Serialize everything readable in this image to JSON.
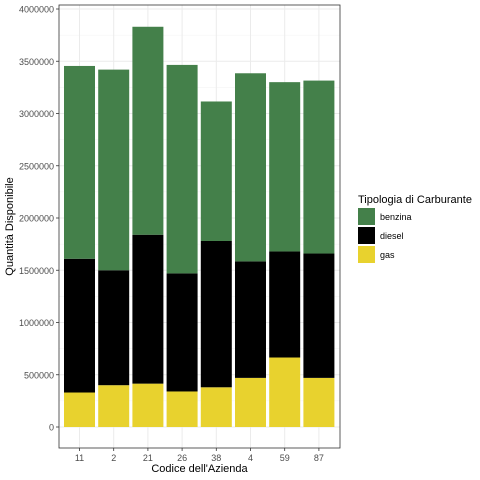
{
  "chart_data": {
    "type": "bar",
    "stacked": true,
    "xlabel": "Codice dell'Azienda",
    "ylabel": "Quantità Disponibile",
    "categories": [
      "11",
      "2",
      "21",
      "26",
      "38",
      "4",
      "59",
      "87"
    ],
    "series": [
      {
        "name": "gas",
        "color": "#E8D22E",
        "values": [
          330000,
          400000,
          415000,
          340000,
          380000,
          470000,
          665000,
          470000
        ]
      },
      {
        "name": "diesel",
        "color": "#000000",
        "values": [
          1280000,
          1100000,
          1425000,
          1130000,
          1400000,
          1115000,
          1015000,
          1190000
        ]
      },
      {
        "name": "benzina",
        "color": "#44804A",
        "values": [
          1845000,
          1920000,
          1990000,
          1995000,
          1335000,
          1800000,
          1620000,
          1655000
        ]
      }
    ],
    "ylim": [
      0,
      4000000
    ],
    "yticks": [
      "0",
      "500000",
      "1000000",
      "1500000",
      "2000000",
      "2500000",
      "3000000",
      "3500000",
      "4000000"
    ],
    "grid": true,
    "legend": {
      "title": "Tipologia di Carburante",
      "position": "right",
      "items": [
        "benzina",
        "diesel",
        "gas"
      ]
    }
  }
}
